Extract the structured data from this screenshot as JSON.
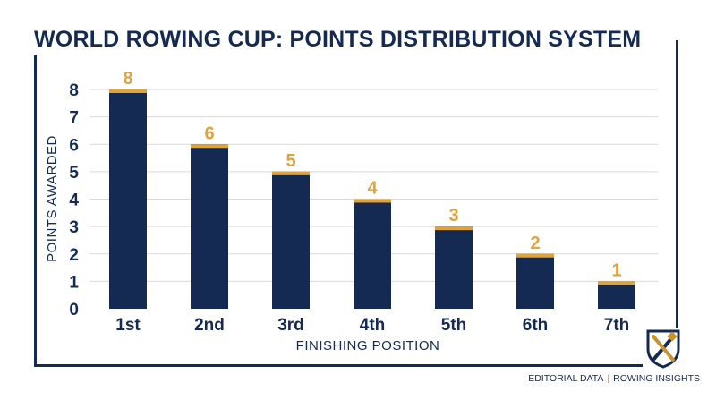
{
  "title": "WORLD ROWING CUP: POINTS DISTRIBUTION SYSTEM",
  "footer": {
    "left": "EDITORIAL DATA",
    "separator": "|",
    "right": "ROWING INSIGHTS"
  },
  "logo": {
    "icon": "rowing-oars-shield-icon"
  },
  "colors": {
    "bar": "#142a52",
    "bar_cap": "#e0a23a",
    "value_label": "#e0a23a",
    "axis_text": "#142a52",
    "grid": "#d9d9d9"
  },
  "chart_data": {
    "type": "bar",
    "categories": [
      "1st",
      "2nd",
      "3rd",
      "4th",
      "5th",
      "6th",
      "7th"
    ],
    "values": [
      8,
      6,
      5,
      4,
      3,
      2,
      1
    ],
    "xlabel": "FINISHING POSITION",
    "ylabel": "POINTS AWARDED",
    "ylim": [
      0,
      8
    ],
    "yticks": [
      0,
      1,
      2,
      3,
      4,
      5,
      6,
      7,
      8
    ],
    "grid": true,
    "data_labels": true
  }
}
